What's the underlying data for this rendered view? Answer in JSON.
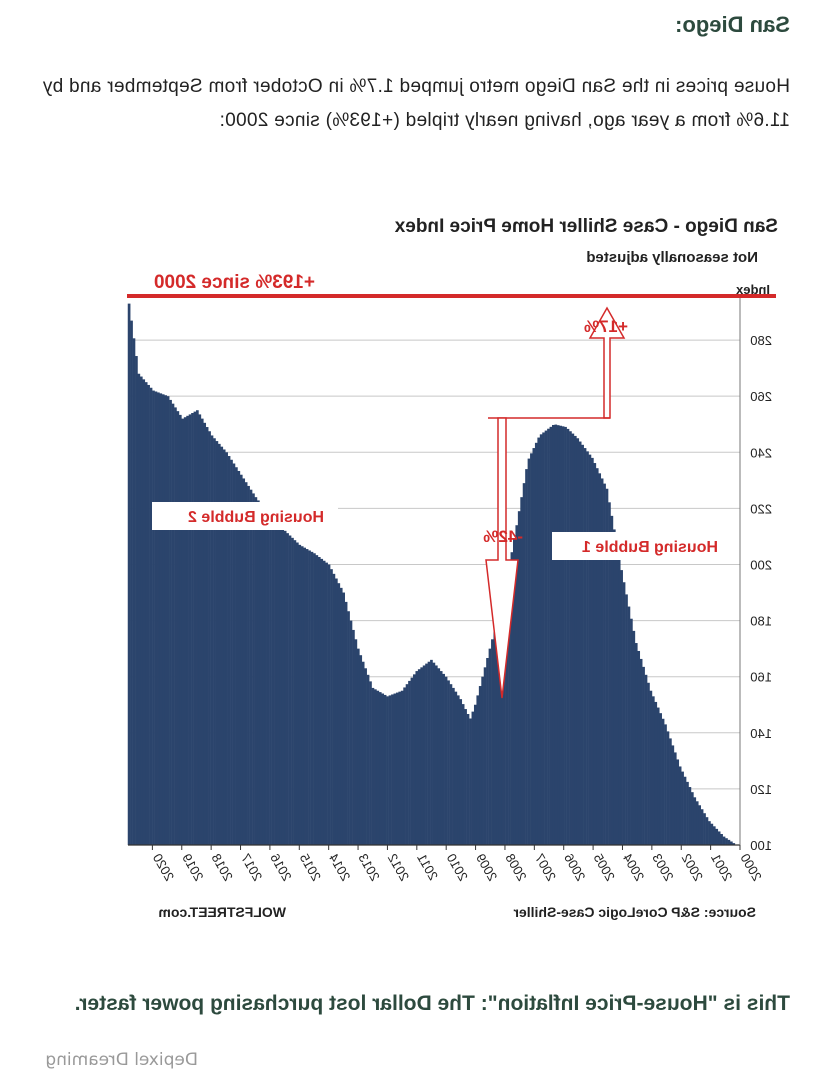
{
  "article": {
    "heading": "San Diego:",
    "paragraph": "House prices in the San Diego metro jumped 1.7% in October from September and by 11.6% from a year ago, having nearly tripled (+193%) since 2000:",
    "footer_heading": "This is \"House-Price Inflation\": The Dollar lost purchasing power faster.",
    "watermark": "Depixel Dreaming"
  },
  "colors": {
    "bars": "#2b446c",
    "annotation": "#d42a2a",
    "grid": "#c8c8c8",
    "heading": "#2d4a3e"
  },
  "chart_data": {
    "type": "bar",
    "title": "San Diego - Case Shiller Home Price Index",
    "subtitle": "Not seasonally adjusted",
    "ylabel": "Index",
    "ylim": [
      100,
      295
    ],
    "yticks": [
      100,
      120,
      140,
      160,
      180,
      200,
      220,
      240,
      260,
      280
    ],
    "x_tick_labels": [
      "2000",
      "2001",
      "2002",
      "2003",
      "2004",
      "2005",
      "2006",
      "2007",
      "2008",
      "2009",
      "2010",
      "2011",
      "2012",
      "2013",
      "2014",
      "2015",
      "2016",
      "2017",
      "2018",
      "2019",
      "2020"
    ],
    "x_start_year": 2000,
    "x_end_year": 2020.83,
    "grid": true,
    "source": "Source: S&P CoreLogic Case-Shiller",
    "credit": "WOLFSTREET.com",
    "series_keyframes": {
      "x": [
        2000.0,
        2000.5,
        2001.0,
        2001.5,
        2002.0,
        2002.5,
        2003.0,
        2003.5,
        2004.0,
        2004.5,
        2005.0,
        2005.5,
        2005.9,
        2006.3,
        2006.8,
        2007.2,
        2007.6,
        2008.0,
        2008.5,
        2009.0,
        2009.17,
        2009.5,
        2010.0,
        2010.5,
        2011.0,
        2011.5,
        2012.0,
        2012.5,
        2013.0,
        2013.5,
        2014.0,
        2014.5,
        2015.0,
        2015.5,
        2016.0,
        2016.5,
        2017.0,
        2017.5,
        2018.0,
        2018.5,
        2019.0,
        2019.5,
        2020.0,
        2020.5,
        2020.83
      ],
      "y": [
        99.5,
        103,
        108.5,
        117,
        128,
        143,
        155,
        172,
        198,
        227,
        238,
        245,
        249,
        250,
        246,
        237,
        213,
        190,
        170,
        150,
        145,
        152,
        160,
        166,
        162,
        155,
        153,
        156,
        170,
        190,
        200,
        204,
        207,
        212,
        217,
        224,
        232,
        240,
        246,
        255,
        252,
        260,
        262,
        268,
        293
      ]
    },
    "annotations": [
      {
        "text": "+193% since 2000"
      },
      {
        "text": "+17%"
      },
      {
        "text": "-42%"
      },
      {
        "text": "Housing Bubble 1"
      },
      {
        "text": "Housing Bubble 2"
      }
    ]
  }
}
